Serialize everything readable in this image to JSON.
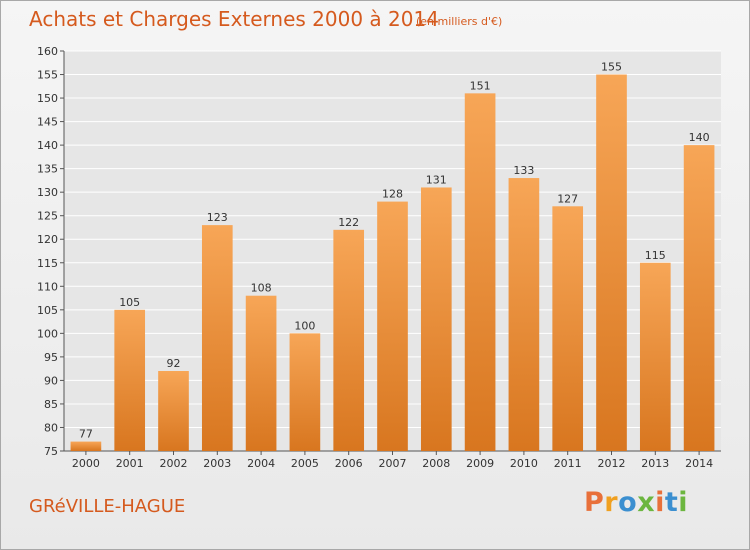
{
  "header": {
    "title": "Achats et Charges Externes 2000 à 2014",
    "subtitle": "(en milliers d'€)"
  },
  "footer": {
    "commune": "GRéVILLE-HAGUE",
    "logo_text": "Proxiti"
  },
  "colors": {
    "bar_top": "#f7a657",
    "bar_bottom": "#d8761f",
    "title": "#d55a1e",
    "grid": "#ffffff",
    "logo_letters": [
      "#e8703a",
      "#f0a020",
      "#3b8fd0",
      "#6cb63f",
      "#e8703a",
      "#3b8fd0",
      "#6cb63f"
    ]
  },
  "chart_data": {
    "type": "bar",
    "title": "Achats et Charges Externes 2000 à 2014",
    "subtitle": "(en milliers d'€)",
    "categories": [
      "2000",
      "2001",
      "2002",
      "2003",
      "2004",
      "2005",
      "2006",
      "2007",
      "2008",
      "2009",
      "2010",
      "2011",
      "2012",
      "2013",
      "2014"
    ],
    "values": [
      77,
      105,
      92,
      123,
      108,
      100,
      122,
      128,
      131,
      151,
      133,
      127,
      155,
      115,
      140
    ],
    "xlabel": "",
    "ylabel": "",
    "ylim": [
      75,
      160
    ],
    "ytick_step": 5,
    "grid": true,
    "legend": "none"
  }
}
